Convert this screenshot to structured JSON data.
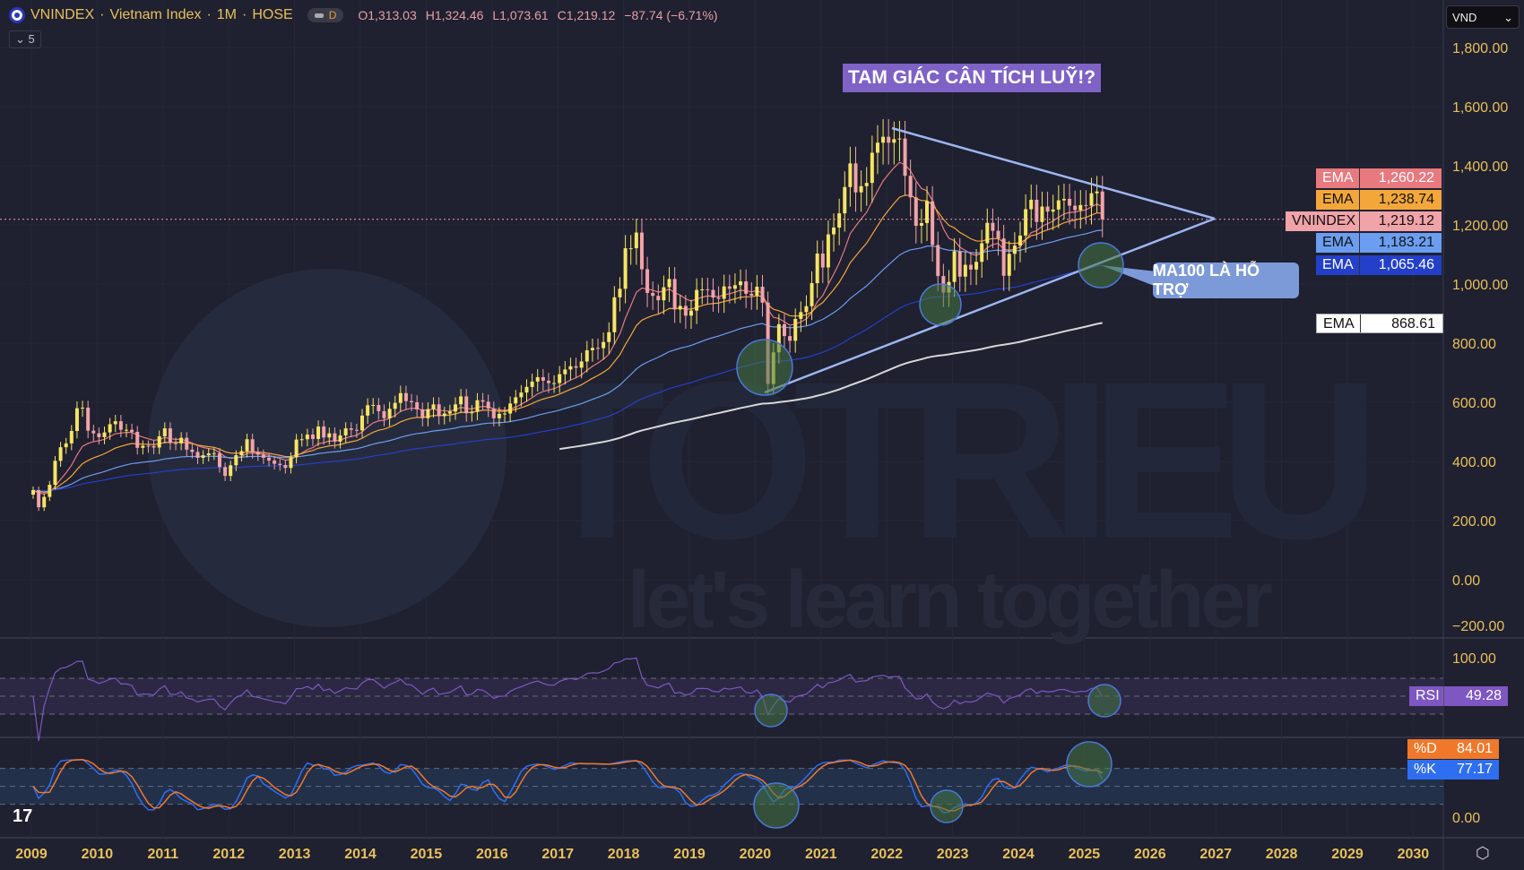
{
  "header": {
    "symbol": "VNINDEX",
    "name": "Vietnam Index",
    "interval": "1M",
    "exchange": "HOSE",
    "pill": "D",
    "open": "O1,313.03",
    "high": "H1,324.46",
    "low": "L1,073.61",
    "close": "C1,219.12",
    "change": "−87.74 (−6.71%)",
    "collapse": "5"
  },
  "currency": "VND",
  "watermark": {
    "brand": "TOTRIEU",
    "slogan": "let's learn together"
  },
  "annotations": {
    "title": "TAM GIÁC CÂN TÍCH LUỸ!?",
    "support": "MA100 LÀ HỖ TRỢ"
  },
  "tags": [
    {
      "name": "EMA",
      "value": "1,260.22",
      "bg": "#e8797f",
      "fg": "#ffffff"
    },
    {
      "name": "EMA",
      "value": "1,238.74",
      "bg": "#f3a73b",
      "fg": "#111111"
    },
    {
      "name": "VNINDEX",
      "value": "1,219.12",
      "bg": "#f0a3a8",
      "fg": "#111111"
    },
    {
      "name": "EMA",
      "value": "1,183.21",
      "bg": "#6b9ef0",
      "fg": "#111111"
    },
    {
      "name": "EMA",
      "value": "1,065.46",
      "bg": "#2440c8",
      "fg": "#ffffff"
    },
    {
      "name": "EMA",
      "value": "868.61",
      "bg": "#ffffff",
      "fg": "#111111"
    }
  ],
  "rsi": {
    "name": "RSI",
    "value": "49.28",
    "top_label": "100.00"
  },
  "stoch": {
    "d_name": "%D",
    "d_value": "84.01",
    "k_name": "%K",
    "k_value": "77.17",
    "bottom_label": "0.00"
  },
  "chart_data": {
    "type": "candlestick",
    "title": "VNINDEX · Vietnam Index · 1M · HOSE",
    "start": "2009-01",
    "ylim": [
      -200,
      1800
    ],
    "y_ticks": [
      "1,800.00",
      "1,600.00",
      "1,400.00",
      "1,200.00",
      "1,000.00",
      "800.00",
      "600.00",
      "400.00",
      "200.00",
      "0.00",
      "−200.00"
    ],
    "y_tick_values": [
      1800,
      1600,
      1400,
      1200,
      1000,
      800,
      600,
      400,
      200,
      0,
      -200
    ],
    "x_ticks": [
      "2009",
      "2010",
      "2011",
      "2012",
      "2013",
      "2014",
      "2015",
      "2016",
      "2017",
      "2018",
      "2019",
      "2020",
      "2021",
      "2022",
      "2023",
      "2024",
      "2025",
      "2026",
      "2027",
      "2028",
      "2029",
      "2030"
    ],
    "monthly_close": [
      303,
      245,
      280,
      321,
      402,
      448,
      461,
      503,
      580,
      582,
      504,
      495,
      482,
      498,
      526,
      536,
      507,
      507,
      500,
      446,
      453,
      452,
      447,
      485,
      512,
      462,
      461,
      480,
      440,
      432,
      412,
      421,
      427,
      428,
      381,
      351,
      387,
      421,
      435,
      475,
      431,
      423,
      412,
      403,
      392,
      388,
      378,
      414,
      474,
      475,
      491,
      476,
      518,
      481,
      495,
      467,
      488,
      512,
      507,
      505,
      555,
      590,
      591,
      570,
      546,
      578,
      598,
      631,
      604,
      600,
      576,
      546,
      577,
      593,
      553,
      562,
      569,
      593,
      620,
      563,
      568,
      607,
      602,
      579,
      546,
      561,
      562,
      596,
      617,
      633,
      652,
      670,
      685,
      673,
      665,
      665,
      695,
      711,
      722,
      717,
      738,
      776,
      784,
      783,
      804,
      837,
      955,
      984,
      1121,
      1121,
      1174,
      1050,
      970,
      960,
      945,
      989,
      1017,
      914,
      926,
      893,
      910,
      980,
      982,
      980,
      954,
      950,
      992,
      984,
      996,
      1009,
      967,
      961,
      991,
      937,
      662,
      769,
      864,
      824,
      808,
      882,
      905,
      925,
      1003,
      1103,
      1056,
      1168,
      1191,
      1239,
      1328,
      1408,
      1310,
      1331,
      1342,
      1444,
      1478,
      1498,
      1478,
      1490,
      1492,
      1366,
      1293,
      1197,
      1206,
      1280,
      1132,
      1027,
      971,
      1007,
      1111,
      1025,
      1065,
      1049,
      1075,
      1138,
      1207,
      1180,
      1154,
      1028,
      1102,
      1130,
      1164,
      1253,
      1285,
      1210,
      1262,
      1245,
      1252,
      1283,
      1288,
      1265,
      1250,
      1267,
      1265,
      1307,
      1313,
      1219
    ],
    "ema_periods": [
      10,
      20,
      50,
      100,
      200
    ],
    "ema_colors": [
      "#e8797f",
      "#f3a73b",
      "#6b9ef0",
      "#2440c8",
      "#d8d8d8"
    ],
    "up_color": "#f7e463",
    "down_color": "#f2a3a8",
    "rsi_period": 14,
    "stoch_period": 14
  }
}
